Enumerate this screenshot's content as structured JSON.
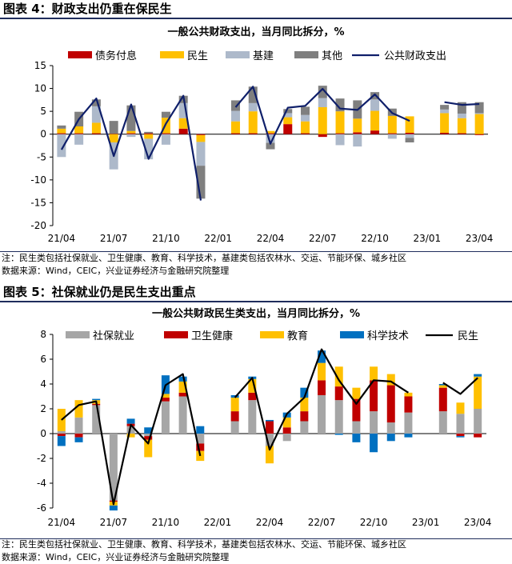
{
  "figures": [
    {
      "figure_title": "图表 4：财政支出仍重在保民生",
      "notes": [
        "注：民生类包括社保就业、卫生健康、教育、科学技术，基建类包括农林水、交运、节能环保、城乡社区",
        "数据来源：Wind，CEIC，兴业证券经济与金融研究院整理"
      ]
    },
    {
      "figure_title": "图表 5：社保就业仍是民生支出重点",
      "notes": [
        "注：民生类包括社保就业、卫生健康、教育、科学技术，基建类包括农林水、交运、节能环保、城乡社区",
        "数据来源：Wind，CEIC，兴业证券经济与金融研究院整理"
      ]
    }
  ],
  "chart_data": [
    {
      "type": "bar",
      "stacked": true,
      "title": "一般公共财政支出，当月同比拆分，%",
      "x_tick_labels": [
        "21/04",
        "21/07",
        "21/10",
        "22/01",
        "22/04",
        "22/07",
        "22/10",
        "23/01",
        "23/04"
      ],
      "x_tick_every": 3,
      "ylim": [
        -20,
        15
      ],
      "yticks": [
        -20,
        -15,
        -10,
        -5,
        0,
        5,
        10,
        15
      ],
      "categories": [
        "21/04",
        "21/05",
        "21/06",
        "21/07",
        "21/08",
        "21/09",
        "21/10",
        "21/11",
        "21/12",
        "22/01",
        "22/02",
        "22/03",
        "22/04",
        "22/05",
        "22/06",
        "22/07",
        "22/08",
        "22/09",
        "22/10",
        "22/11",
        "22/12",
        "23/01",
        "23/02",
        "23/03",
        "23/04"
      ],
      "series": [
        {
          "name": "债务付息",
          "color": "#c00000",
          "values": [
            0.2,
            0.2,
            0.2,
            0.1,
            0.2,
            0.2,
            0.2,
            1.2,
            -0.2,
            null,
            0.2,
            0.2,
            0.2,
            2.2,
            0.2,
            -0.6,
            0.2,
            0.4,
            0.8,
            0.2,
            0.3,
            null,
            0.3,
            0.2,
            -0.2
          ]
        },
        {
          "name": "民生",
          "color": "#ffc000",
          "values": [
            1.0,
            1.5,
            2.3,
            -1.8,
            0.5,
            -1.0,
            3.4,
            2.3,
            -1.5,
            null,
            2.6,
            4.8,
            0.5,
            1.5,
            2.6,
            5.9,
            4.8,
            3.0,
            4.3,
            3.8,
            3.6,
            null,
            4.3,
            3.3,
            4.4
          ]
        },
        {
          "name": "基建",
          "color": "#adb9ca",
          "values": [
            -5.0,
            -2.3,
            3.6,
            -5.9,
            -0.6,
            -4.5,
            -2.3,
            3.3,
            -5.2,
            null,
            2.3,
            1.8,
            -1.9,
            0.9,
            1.4,
            2.0,
            -2.4,
            -2.7,
            2.5,
            -1.0,
            -0.8,
            null,
            0.8,
            1.0,
            0.2
          ]
        },
        {
          "name": "其他",
          "color": "#7f7f7f",
          "values": [
            0.7,
            3.2,
            1.5,
            2.8,
            5.6,
            0.3,
            1.3,
            1.6,
            -7.2,
            null,
            2.3,
            3.6,
            -1.4,
            0.9,
            1.8,
            2.7,
            2.8,
            4.0,
            1.6,
            1.6,
            -1.0,
            null,
            1.0,
            2.5,
            2.4
          ]
        }
      ],
      "line": {
        "name": "公共财政支出",
        "color": "#0f1f6a",
        "values": [
          -3.4,
          3.3,
          7.8,
          -4.8,
          6.5,
          -5.4,
          2.3,
          8.4,
          -14.5,
          null,
          5.9,
          10.4,
          -2.1,
          5.8,
          6.2,
          9.9,
          5.6,
          5.3,
          8.7,
          4.6,
          2.9,
          null,
          7.0,
          6.4,
          6.6
        ]
      }
    },
    {
      "type": "bar",
      "stacked": true,
      "title": "一般公共财政民生类支出，当月同比拆分，%",
      "x_tick_labels": [
        "21/04",
        "21/07",
        "21/10",
        "22/01",
        "22/04",
        "22/07",
        "22/10",
        "23/01",
        "23/04"
      ],
      "x_tick_every": 3,
      "ylim": [
        -6,
        8
      ],
      "yticks": [
        -6,
        -4,
        -2,
        0,
        2,
        4,
        6,
        8
      ],
      "categories": [
        "21/04",
        "21/05",
        "21/06",
        "21/07",
        "21/08",
        "21/09",
        "21/10",
        "21/11",
        "21/12",
        "22/01",
        "22/02",
        "22/03",
        "22/04",
        "22/05",
        "22/06",
        "22/07",
        "22/08",
        "22/09",
        "22/10",
        "22/11",
        "22/12",
        "23/01",
        "23/02",
        "23/03",
        "23/04"
      ],
      "series": [
        {
          "name": "社保就业",
          "color": "#a6a6a6",
          "values": [
            0.2,
            1.3,
            2.3,
            -5.4,
            0.6,
            -0.2,
            2.6,
            3.0,
            -0.8,
            null,
            1.0,
            2.7,
            -1.0,
            -0.6,
            1.0,
            3.1,
            2.7,
            1.0,
            1.8,
            0.9,
            1.7,
            null,
            1.8,
            1.6,
            2.0
          ]
        },
        {
          "name": "卫生健康",
          "color": "#c00000",
          "values": [
            -0.2,
            -0.3,
            0.1,
            -0.1,
            0.2,
            -0.3,
            0.3,
            0.3,
            -0.6,
            null,
            0.8,
            0.6,
            1.0,
            0.5,
            0.8,
            1.2,
            1.1,
            1.8,
            2.5,
            3.0,
            1.3,
            null,
            1.9,
            -0.2,
            -0.3
          ]
        },
        {
          "name": "教育",
          "color": "#ffc000",
          "values": [
            1.8,
            1.4,
            0.3,
            -0.3,
            -0.3,
            -1.4,
            0.3,
            0.9,
            -0.8,
            null,
            1.1,
            1.1,
            -1.4,
            0.8,
            1.1,
            1.4,
            1.6,
            0.9,
            1.1,
            0.9,
            0.3,
            null,
            0.2,
            0.9,
            2.6
          ]
        },
        {
          "name": "科学技术",
          "color": "#0070c0",
          "values": [
            -0.8,
            -0.4,
            0.1,
            -0.4,
            0.4,
            0.5,
            1.5,
            0.4,
            0.6,
            null,
            0.2,
            0.2,
            0.1,
            0.4,
            0.8,
            1.0,
            -0.1,
            -0.7,
            -1.5,
            -0.6,
            -0.3,
            null,
            0.1,
            -0.1,
            0.2
          ]
        }
      ],
      "line": {
        "name": "民生",
        "color": "#000000",
        "values": [
          1.1,
          2.3,
          2.6,
          -5.7,
          0.7,
          -0.8,
          3.9,
          4.8,
          -1.8,
          null,
          2.9,
          4.5,
          -1.3,
          1.6,
          2.9,
          6.8,
          4.3,
          2.4,
          4.3,
          4.2,
          3.3,
          null,
          4.1,
          3.2,
          4.5
        ]
      }
    }
  ]
}
